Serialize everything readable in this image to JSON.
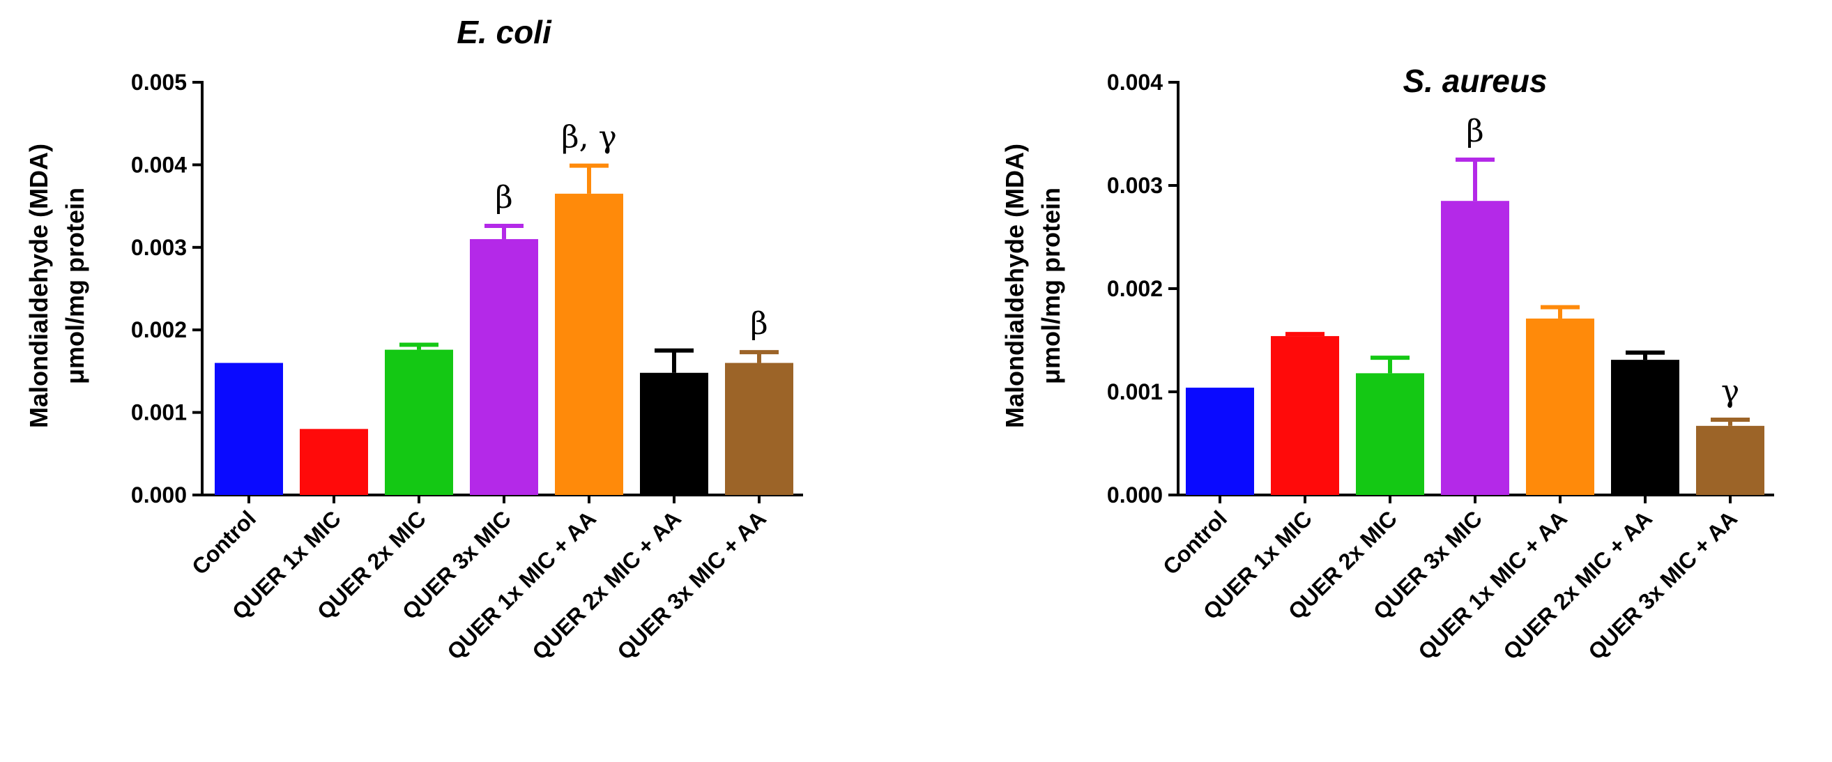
{
  "chart_data": [
    {
      "type": "bar",
      "title": "E. coli",
      "ylabel_line1": "Malondialdehyde (MDA)",
      "ylabel_line2": "μmol/mg protein",
      "xlabel": "",
      "ylim": [
        0,
        0.005
      ],
      "yticks": [
        "0.000",
        "0.001",
        "0.002",
        "0.003",
        "0.004",
        "0.005"
      ],
      "categories": [
        "Control",
        "QUER 1x MIC",
        "QUER 2x MIC",
        "QUER 3x MIC",
        "QUER 1x MIC + AA",
        "QUER 2x MIC + AA",
        "QUER 3x MIC + AA"
      ],
      "values": [
        0.0016,
        0.0008,
        0.00176,
        0.0031,
        0.00365,
        0.00148,
        0.0016
      ],
      "errors": [
        0.0,
        0.0,
        6e-05,
        0.00016,
        0.00034,
        0.00027,
        0.00013
      ],
      "colors": [
        "#0a0aff",
        "#ff0a0a",
        "#14c814",
        "#b429e8",
        "#ff8a0a",
        "#000000",
        "#9c6428"
      ],
      "annotations": [
        "",
        "",
        "",
        "β",
        "β, γ",
        "",
        "β"
      ]
    },
    {
      "type": "bar",
      "title": "S. aureus",
      "ylabel_line1": "Malondialdehyde (MDA)",
      "ylabel_line2": "μmol/mg protein",
      "xlabel": "",
      "ylim": [
        0,
        0.004
      ],
      "yticks": [
        "0.000",
        "0.001",
        "0.002",
        "0.003",
        "0.004"
      ],
      "categories": [
        "Control",
        "QUER 1x MIC",
        "QUER 2x MIC",
        "QUER 3x MIC",
        "QUER 1x MIC + AA",
        "QUER 2x MIC + AA",
        "QUER 3x MIC + AA"
      ],
      "values": [
        0.00104,
        0.00154,
        0.00118,
        0.00285,
        0.00171,
        0.00131,
        0.00067
      ],
      "errors": [
        0.0,
        2e-05,
        0.00015,
        0.0004,
        0.00011,
        7e-05,
        6e-05
      ],
      "colors": [
        "#0a0aff",
        "#ff0a0a",
        "#14c814",
        "#b429e8",
        "#ff8a0a",
        "#000000",
        "#9c6428"
      ],
      "annotations": [
        "",
        "",
        "",
        "β",
        "",
        "",
        "γ"
      ]
    }
  ]
}
